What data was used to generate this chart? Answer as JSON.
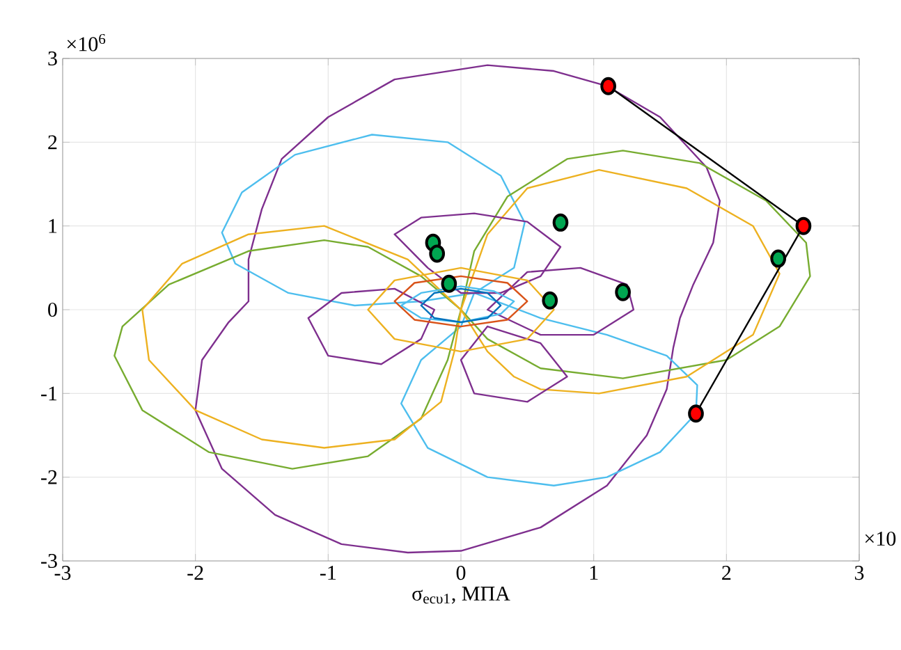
{
  "chart_data": {
    "type": "line",
    "xlabel": "σ$_{ecυ1}$, МПА",
    "annotations": [
      "×10$^{6}$",
      "×10"
    ],
    "xlim": [
      -3,
      3
    ],
    "ylim": [
      -3,
      3
    ],
    "xticks": [
      -3,
      -2,
      -1,
      0,
      1,
      2,
      3
    ],
    "yticks": [
      -3,
      -2,
      -1,
      0,
      1,
      2,
      3
    ],
    "grid": true,
    "series": [
      {
        "color": "#7e2f8e",
        "x": [
          0.2,
          0.7,
          1.1,
          1.5,
          1.85,
          1.95,
          1.9,
          1.75,
          1.65,
          1.6,
          1.55,
          1.4,
          1.1,
          0.6,
          0.0,
          -0.4,
          -0.9,
          -1.4,
          -1.8,
          -2.0,
          -1.95,
          -1.75,
          -1.6,
          -1.6,
          -1.5,
          -1.35,
          -1.0,
          -0.5,
          0.2,
          0.7
        ],
        "values": [
          2.92,
          2.85,
          2.67,
          2.3,
          1.7,
          1.3,
          0.8,
          0.3,
          -0.1,
          -0.45,
          -0.95,
          -1.5,
          -2.1,
          -2.6,
          -2.88,
          -2.9,
          -2.8,
          -2.45,
          -1.9,
          -1.2,
          -0.6,
          -0.15,
          0.1,
          0.6,
          1.2,
          1.8,
          2.3,
          2.75,
          2.92,
          2.85
        ]
      },
      {
        "color": "#4dbeee",
        "x": [
          0.1,
          -0.3,
          -0.8,
          -1.3,
          -1.7,
          -1.8,
          -1.65,
          -1.25,
          -0.67,
          -0.1,
          0.3,
          0.48,
          0.4,
          0.1,
          0.6,
          1.1,
          1.55,
          1.78,
          1.77,
          1.5,
          1.1,
          0.7,
          0.2,
          -0.25,
          -0.45,
          -0.3,
          0.0,
          0.1,
          -0.3
        ],
        "values": [
          0.2,
          0.1,
          0.05,
          0.2,
          0.55,
          0.92,
          1.4,
          1.85,
          2.09,
          2.0,
          1.6,
          1.04,
          0.5,
          0.2,
          -0.1,
          -0.3,
          -0.55,
          -0.9,
          -1.24,
          -1.7,
          -2.0,
          -2.1,
          -2.0,
          -1.65,
          -1.12,
          -0.6,
          -0.2,
          0.2,
          0.1
        ]
      },
      {
        "color": "#77ac30",
        "x": [
          0.0,
          -0.3,
          -0.7,
          -1.03,
          -1.6,
          -2.2,
          -2.55,
          -2.61,
          -2.4,
          -1.9,
          -1.27,
          -0.7,
          -0.3,
          -0.1,
          0.0,
          0.1,
          0.35,
          0.8,
          1.22,
          1.8,
          2.3,
          2.6,
          2.63,
          2.4,
          2.0,
          1.22,
          0.6,
          0.2,
          0.0,
          -0.3
        ],
        "values": [
          0.0,
          0.4,
          0.75,
          0.83,
          0.7,
          0.3,
          -0.2,
          -0.55,
          -1.2,
          -1.7,
          -1.9,
          -1.75,
          -1.3,
          -0.6,
          0.0,
          0.7,
          1.35,
          1.8,
          1.9,
          1.75,
          1.3,
          0.8,
          0.4,
          -0.2,
          -0.6,
          -0.82,
          -0.7,
          -0.35,
          0.0,
          0.4
        ]
      },
      {
        "color": "#edb120",
        "x": [
          0.0,
          -0.4,
          -1.03,
          -1.6,
          -2.1,
          -2.4,
          -2.35,
          -2.0,
          -1.5,
          -1.03,
          -0.5,
          -0.15,
          -0.05,
          0.0,
          0.2,
          0.5,
          1.04,
          1.7,
          2.2,
          2.4,
          2.2,
          1.7,
          1.04,
          0.6,
          0.4,
          0.2,
          0.0,
          -0.4
        ],
        "values": [
          0.0,
          0.6,
          1.0,
          0.9,
          0.55,
          0.0,
          -0.6,
          -1.2,
          -1.55,
          -1.65,
          -1.55,
          -1.1,
          -0.5,
          0.0,
          0.9,
          1.45,
          1.67,
          1.45,
          1.0,
          0.43,
          -0.3,
          -0.8,
          -1.0,
          -0.95,
          -0.8,
          -0.5,
          0.0,
          0.6
        ]
      },
      {
        "color": "#7e2f8e",
        "x": [
          0.0,
          -0.25,
          -0.5,
          -0.3,
          0.1,
          0.5,
          0.75,
          0.6,
          0.3,
          0.0,
          -0.25
        ],
        "values": [
          0.2,
          0.5,
          0.9,
          1.1,
          1.15,
          1.05,
          0.75,
          0.4,
          0.2,
          0.2,
          0.5
        ]
      },
      {
        "color": "#7e2f8e",
        "x": [
          0.2,
          0.5,
          0.9,
          1.25,
          1.3,
          1.0,
          0.6,
          0.2,
          0.5
        ],
        "values": [
          0.0,
          0.45,
          0.5,
          0.3,
          0.0,
          -0.3,
          -0.3,
          0.0,
          0.45
        ]
      },
      {
        "color": "#7e2f8e",
        "x": [
          -0.2,
          -0.5,
          -0.9,
          -1.15,
          -1.0,
          -0.6,
          -0.3,
          -0.2,
          -0.5
        ],
        "values": [
          0.0,
          0.25,
          0.2,
          -0.1,
          -0.55,
          -0.65,
          -0.35,
          0.0,
          0.25
        ]
      },
      {
        "color": "#7e2f8e",
        "x": [
          0.2,
          0.0,
          0.1,
          0.5,
          0.8,
          0.6,
          0.2,
          0.0
        ],
        "values": [
          -0.2,
          -0.6,
          -1.0,
          -1.1,
          -0.8,
          -0.4,
          -0.2,
          -0.6
        ]
      },
      {
        "color": "#edb120",
        "x": [
          0.7,
          0.5,
          0.0,
          -0.5,
          -0.7,
          -0.5,
          0.0,
          0.5,
          0.7,
          0.5
        ],
        "values": [
          0.0,
          0.35,
          0.5,
          0.35,
          0.0,
          -0.35,
          -0.5,
          -0.35,
          0.0,
          0.35
        ]
      },
      {
        "color": "#d95319",
        "x": [
          0.5,
          0.35,
          0.0,
          -0.35,
          -0.5,
          -0.35,
          0.0,
          0.35,
          0.5,
          0.35
        ],
        "values": [
          0.1,
          0.32,
          0.4,
          0.32,
          0.1,
          -0.12,
          -0.2,
          -0.12,
          0.1,
          0.32
        ]
      },
      {
        "color": "#4dbeee",
        "x": [
          0.4,
          0.25,
          0.0,
          -0.3,
          -0.45,
          -0.3,
          0.0,
          0.3,
          0.4,
          0.25
        ],
        "values": [
          0.1,
          0.22,
          0.28,
          0.2,
          0.05,
          -0.1,
          -0.15,
          -0.05,
          0.1,
          0.22
        ]
      },
      {
        "color": "#0072bd",
        "x": [
          0.3,
          0.2,
          0.0,
          -0.2,
          -0.3,
          -0.2,
          0.0,
          0.2,
          0.3,
          0.2
        ],
        "values": [
          0.05,
          0.2,
          0.25,
          0.2,
          0.05,
          -0.1,
          -0.15,
          -0.1,
          0.05,
          0.2
        ]
      },
      {
        "color": "#000000",
        "x": [
          1.11,
          2.58,
          1.77
        ],
        "values": [
          2.67,
          1.0,
          -1.24
        ]
      },
      {
        "type": "scatter",
        "color": "#ff0000",
        "marker": "circle",
        "x": [
          1.11,
          2.58,
          1.77
        ],
        "values": [
          2.67,
          1.0,
          -1.24
        ]
      },
      {
        "type": "scatter",
        "color": "#00a651",
        "marker": "circle",
        "x": [
          -0.21,
          -0.18,
          -0.09,
          0.75,
          0.67,
          1.22,
          2.39
        ],
        "values": [
          0.8,
          0.67,
          0.31,
          1.04,
          0.11,
          0.21,
          0.61
        ]
      }
    ]
  }
}
